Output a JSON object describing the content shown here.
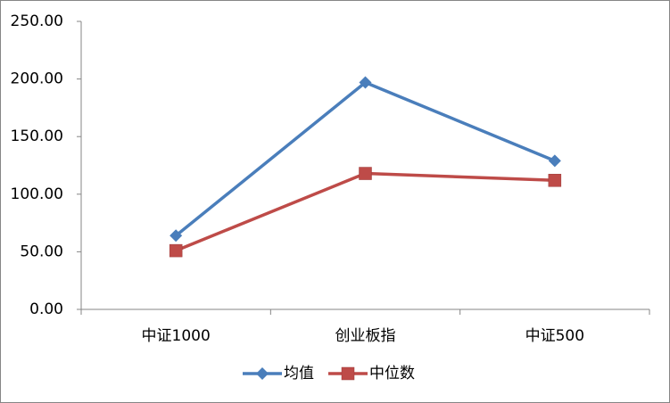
{
  "chart_data": {
    "type": "line",
    "categories": [
      "中证1000",
      "创业板指",
      "中证500"
    ],
    "series": [
      {
        "name": "均值",
        "color": "#4a7ebb",
        "marker": "diamond",
        "values": [
          64,
          197,
          129
        ]
      },
      {
        "name": "中位数",
        "color": "#be4b48",
        "marker": "square",
        "values": [
          51,
          118,
          112
        ]
      }
    ],
    "ylim": [
      0,
      250
    ],
    "yticks": [
      {
        "value": 0,
        "label": "0.00"
      },
      {
        "value": 50,
        "label": "50.00"
      },
      {
        "value": 100,
        "label": "100.00"
      },
      {
        "value": 150,
        "label": "150.00"
      },
      {
        "value": 200,
        "label": "200.00"
      },
      {
        "value": 250,
        "label": "250.00"
      }
    ],
    "grid": false,
    "legend": "bottom"
  }
}
